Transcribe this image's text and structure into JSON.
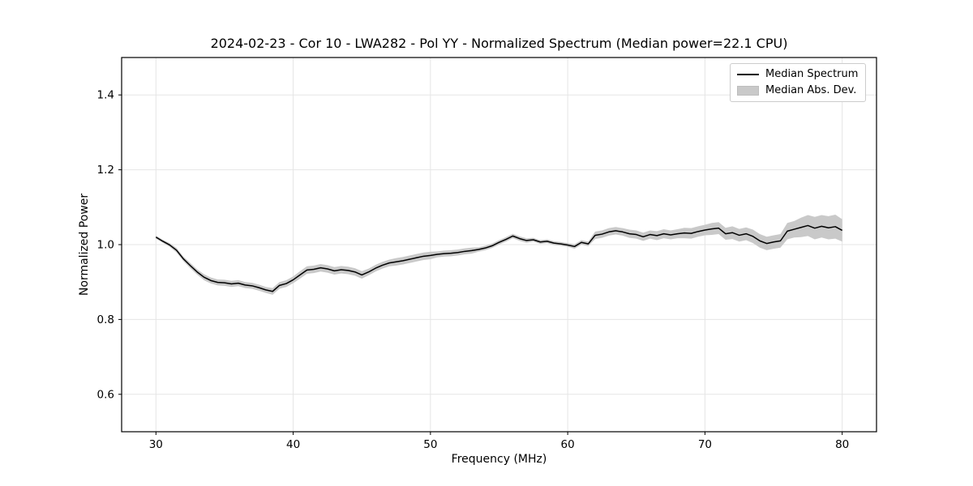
{
  "chart_data": {
    "type": "line",
    "title": "2024-02-23 - Cor 10 - LWA282 - Pol YY - Normalized Spectrum (Median power=22.1 CPU)",
    "xlabel": "Frequency (MHz)",
    "ylabel": "Normalized Power",
    "xlim": [
      27.5,
      82.5
    ],
    "ylim": [
      0.5,
      1.5
    ],
    "x_ticks": [
      30,
      40,
      50,
      60,
      70,
      80
    ],
    "x_tick_labels": [
      "30",
      "40",
      "50",
      "60",
      "70",
      "80"
    ],
    "y_ticks": [
      0.6,
      0.8,
      1.0,
      1.2,
      1.4
    ],
    "y_tick_labels": [
      "0.6",
      "0.8",
      "1.0",
      "1.2",
      "1.4"
    ],
    "grid": true,
    "legend": {
      "position": "upper right",
      "entries": [
        {
          "label": "Median Spectrum",
          "type": "line",
          "color": "#000000"
        },
        {
          "label": "Median Abs. Dev.",
          "type": "patch",
          "color": "#c9c9c9"
        }
      ]
    },
    "series": [
      {
        "name": "Median Spectrum",
        "type": "line",
        "color": "#000000",
        "freq_start": 30.0,
        "freq_step": 0.5,
        "values": [
          1.02,
          1.009,
          0.999,
          0.985,
          0.962,
          0.944,
          0.927,
          0.913,
          0.904,
          0.899,
          0.898,
          0.895,
          0.897,
          0.892,
          0.89,
          0.885,
          0.879,
          0.875,
          0.891,
          0.896,
          0.906,
          0.919,
          0.932,
          0.934,
          0.938,
          0.935,
          0.93,
          0.933,
          0.931,
          0.927,
          0.919,
          0.927,
          0.937,
          0.945,
          0.951,
          0.954,
          0.957,
          0.961,
          0.965,
          0.969,
          0.971,
          0.974,
          0.976,
          0.977,
          0.979,
          0.982,
          0.984,
          0.987,
          0.991,
          0.997,
          1.006,
          1.014,
          1.023,
          1.016,
          1.011,
          1.013,
          1.007,
          1.009,
          1.004,
          1.002,
          0.999,
          0.995,
          1.006,
          1.002,
          1.025,
          1.028,
          1.034,
          1.037,
          1.034,
          1.029,
          1.027,
          1.021,
          1.027,
          1.024,
          1.029,
          1.026,
          1.029,
          1.031,
          1.03,
          1.035,
          1.039,
          1.042,
          1.044,
          1.029,
          1.032,
          1.025,
          1.029,
          1.022,
          1.01,
          1.003,
          1.007,
          1.01,
          1.036,
          1.041,
          1.046,
          1.051,
          1.044,
          1.049,
          1.045,
          1.048,
          1.038
        ]
      },
      {
        "name": "Median Abs. Dev.",
        "type": "band",
        "color": "#c9c9c9",
        "freq_start": 30.0,
        "freq_step": 0.5,
        "half_width": [
          0.004,
          0.004,
          0.005,
          0.006,
          0.006,
          0.007,
          0.007,
          0.008,
          0.008,
          0.008,
          0.008,
          0.008,
          0.008,
          0.008,
          0.008,
          0.008,
          0.008,
          0.009,
          0.009,
          0.009,
          0.009,
          0.01,
          0.01,
          0.01,
          0.01,
          0.01,
          0.01,
          0.01,
          0.01,
          0.01,
          0.01,
          0.009,
          0.009,
          0.009,
          0.009,
          0.01,
          0.01,
          0.01,
          0.01,
          0.01,
          0.01,
          0.008,
          0.008,
          0.008,
          0.008,
          0.008,
          0.008,
          0.006,
          0.006,
          0.006,
          0.006,
          0.006,
          0.006,
          0.006,
          0.006,
          0.005,
          0.005,
          0.005,
          0.005,
          0.005,
          0.005,
          0.006,
          0.006,
          0.006,
          0.01,
          0.01,
          0.01,
          0.01,
          0.01,
          0.011,
          0.011,
          0.011,
          0.011,
          0.012,
          0.012,
          0.012,
          0.012,
          0.014,
          0.014,
          0.014,
          0.014,
          0.016,
          0.016,
          0.016,
          0.017,
          0.017,
          0.017,
          0.018,
          0.018,
          0.018,
          0.018,
          0.018,
          0.022,
          0.022,
          0.026,
          0.028,
          0.03,
          0.03,
          0.031,
          0.032,
          0.03
        ]
      }
    ]
  },
  "colors": {
    "line": "#000000",
    "band": "#c9c9c9",
    "grid": "#e5e5e5",
    "frame": "#000000",
    "background": "#ffffff",
    "legend_border": "#cccccc",
    "text": "#000000"
  }
}
